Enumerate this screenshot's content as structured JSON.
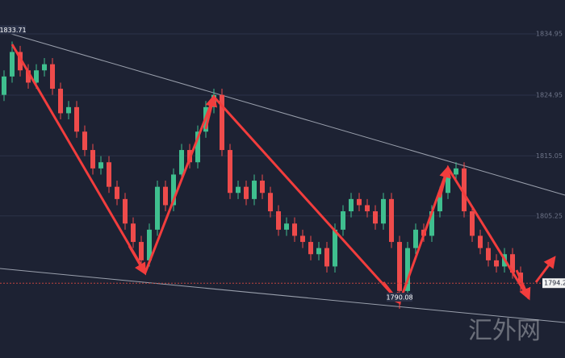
{
  "chart_data": {
    "type": "candlestick",
    "ohlc": [
      [
        1825,
        1829,
        1824,
        1828
      ],
      [
        1828,
        1833.71,
        1827,
        1832
      ],
      [
        1832,
        1833,
        1828,
        1829
      ],
      [
        1829,
        1830,
        1826,
        1827
      ],
      [
        1827,
        1830,
        1826,
        1829
      ],
      [
        1829,
        1831,
        1828,
        1830
      ],
      [
        1830,
        1831,
        1825,
        1826
      ],
      [
        1826,
        1827,
        1821,
        1822
      ],
      [
        1822,
        1824,
        1821,
        1823
      ],
      [
        1823,
        1824,
        1818,
        1819
      ],
      [
        1819,
        1820,
        1815,
        1816
      ],
      [
        1816,
        1817,
        1812,
        1813
      ],
      [
        1813,
        1815,
        1812,
        1814
      ],
      [
        1814,
        1815,
        1809,
        1810
      ],
      [
        1810,
        1811,
        1807,
        1808
      ],
      [
        1808,
        1809,
        1803,
        1804
      ],
      [
        1804,
        1805,
        1800,
        1801
      ],
      [
        1801,
        1802,
        1797,
        1798
      ],
      [
        1798,
        1804,
        1797,
        1803
      ],
      [
        1803,
        1811,
        1802,
        1810
      ],
      [
        1810,
        1811,
        1806,
        1807
      ],
      [
        1807,
        1813,
        1806,
        1812
      ],
      [
        1812,
        1817,
        1811,
        1816
      ],
      [
        1816,
        1817,
        1813,
        1814
      ],
      [
        1814,
        1820,
        1813,
        1819
      ],
      [
        1819,
        1824,
        1818,
        1823
      ],
      [
        1823,
        1826,
        1822,
        1825
      ],
      [
        1825,
        1826,
        1815,
        1816
      ],
      [
        1816,
        1817,
        1808,
        1809
      ],
      [
        1809,
        1811,
        1808,
        1810
      ],
      [
        1810,
        1811,
        1807,
        1808
      ],
      [
        1808,
        1812,
        1807,
        1811
      ],
      [
        1811,
        1812,
        1808,
        1809
      ],
      [
        1809,
        1810,
        1805,
        1806
      ],
      [
        1806,
        1807,
        1802,
        1803
      ],
      [
        1803,
        1805,
        1802,
        1804
      ],
      [
        1804,
        1805,
        1801,
        1802
      ],
      [
        1802,
        1803,
        1800,
        1801
      ],
      [
        1801,
        1802,
        1798,
        1799
      ],
      [
        1799,
        1801,
        1798,
        1800
      ],
      [
        1800,
        1801,
        1796,
        1797
      ],
      [
        1797,
        1804,
        1796,
        1803
      ],
      [
        1803,
        1807,
        1802,
        1806
      ],
      [
        1806,
        1809,
        1805,
        1808
      ],
      [
        1808,
        1809,
        1806,
        1807
      ],
      [
        1807,
        1808,
        1805,
        1806
      ],
      [
        1806,
        1807,
        1803,
        1804
      ],
      [
        1804,
        1809,
        1803,
        1808
      ],
      [
        1808,
        1809,
        1800,
        1801
      ],
      [
        1801,
        1802,
        1790.08,
        1793
      ],
      [
        1793,
        1801,
        1792,
        1800
      ],
      [
        1800,
        1804,
        1799,
        1803
      ],
      [
        1803,
        1804,
        1801,
        1802
      ],
      [
        1802,
        1807,
        1801,
        1806
      ],
      [
        1806,
        1810,
        1805,
        1809
      ],
      [
        1809,
        1813,
        1808,
        1812
      ],
      [
        1812,
        1814,
        1811,
        1813
      ],
      [
        1813,
        1814,
        1805,
        1806
      ],
      [
        1806,
        1807,
        1801,
        1802
      ],
      [
        1802,
        1803,
        1799,
        1800
      ],
      [
        1800,
        1801,
        1797,
        1798
      ],
      [
        1798,
        1799,
        1796,
        1797
      ],
      [
        1797,
        1800,
        1796,
        1799
      ],
      [
        1799,
        1800,
        1795,
        1796
      ],
      [
        1796,
        1797,
        1793,
        1794.27
      ]
    ],
    "up_color": "#3fbf8f",
    "down_color": "#ee4b4b",
    "ylim": [
      1782.06,
      1840.48
    ],
    "yticks": [
      1834.95,
      1824.95,
      1815.05,
      1805.25
    ],
    "grid": true,
    "max_label": 1833.71,
    "min_label": 1790.08,
    "last_price": 1794.27,
    "watermark": "汇外网"
  }
}
